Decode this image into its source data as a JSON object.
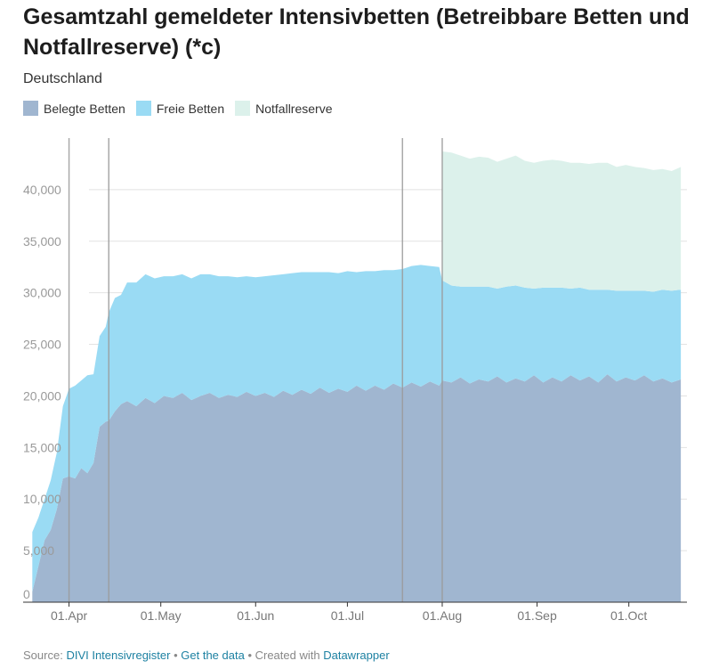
{
  "header": {
    "title": "Gesamtzahl gemeldeter Intensivbetten (Betreibbare Betten und Notfallreserve) (*c)",
    "subtitle": "Deutschland"
  },
  "legend": [
    {
      "label": "Belegte Betten",
      "color": "#a0b6d0"
    },
    {
      "label": "Freie Betten",
      "color": "#9adbf4"
    },
    {
      "label": "Notfallreserve",
      "color": "#dcf1eb"
    }
  ],
  "footer": {
    "source_prefix": "Source:",
    "source_name": "DIVI Intensivregister",
    "sep1": " • ",
    "get_data": "Get the data",
    "sep2": " • ",
    "created_with": "Created with",
    "tool": "Datawrapper"
  },
  "chart_data": {
    "type": "area",
    "stacked": true,
    "title": "Gesamtzahl gemeldeter Intensivbetten (Betreibbare Betten und Notfallreserve) (*c)",
    "subtitle": "Deutschland",
    "xlabel": "",
    "ylabel": "",
    "ylim": [
      0,
      45000
    ],
    "yticks": [
      0,
      5000,
      10000,
      15000,
      20000,
      25000,
      30000,
      35000,
      40000
    ],
    "ytick_labels": [
      "0",
      "5,000",
      "10,000",
      "15,000",
      "20,000",
      "25,000",
      "30,000",
      "35,000",
      "40,000"
    ],
    "xlim": [
      "2020-03-17",
      "2020-10-20"
    ],
    "xticks": [
      "2020-04-01",
      "2020-05-01",
      "2020-06-01",
      "2020-07-01",
      "2020-08-01",
      "2020-09-01",
      "2020-10-01"
    ],
    "xtick_labels": [
      "01.Apr",
      "01.May",
      "01.Jun",
      "01.Jul",
      "01.Aug",
      "01.Sep",
      "01.Oct"
    ],
    "annotation_lines": [
      "2020-04-01",
      "2020-04-14",
      "2020-07-19",
      "2020-08-01"
    ],
    "grid": true,
    "legend_position": "top-left",
    "x": [
      "2020-03-20",
      "2020-03-22",
      "2020-03-24",
      "2020-03-26",
      "2020-03-28",
      "2020-03-30",
      "2020-04-01",
      "2020-04-03",
      "2020-04-05",
      "2020-04-07",
      "2020-04-09",
      "2020-04-11",
      "2020-04-13",
      "2020-04-14",
      "2020-04-16",
      "2020-04-18",
      "2020-04-20",
      "2020-04-23",
      "2020-04-26",
      "2020-04-29",
      "2020-05-02",
      "2020-05-05",
      "2020-05-08",
      "2020-05-11",
      "2020-05-14",
      "2020-05-17",
      "2020-05-20",
      "2020-05-23",
      "2020-05-26",
      "2020-05-29",
      "2020-06-01",
      "2020-06-04",
      "2020-06-07",
      "2020-06-10",
      "2020-06-13",
      "2020-06-16",
      "2020-06-19",
      "2020-06-22",
      "2020-06-25",
      "2020-06-28",
      "2020-07-01",
      "2020-07-04",
      "2020-07-07",
      "2020-07-10",
      "2020-07-13",
      "2020-07-16",
      "2020-07-19",
      "2020-07-22",
      "2020-07-25",
      "2020-07-28",
      "2020-07-31",
      "2020-08-01",
      "2020-08-04",
      "2020-08-07",
      "2020-08-10",
      "2020-08-13",
      "2020-08-16",
      "2020-08-19",
      "2020-08-22",
      "2020-08-25",
      "2020-08-28",
      "2020-08-31",
      "2020-09-03",
      "2020-09-06",
      "2020-09-09",
      "2020-09-12",
      "2020-09-15",
      "2020-09-18",
      "2020-09-21",
      "2020-09-24",
      "2020-09-27",
      "2020-09-30",
      "2020-10-03",
      "2020-10-06",
      "2020-10-09",
      "2020-10-12",
      "2020-10-15",
      "2020-10-18"
    ],
    "series": [
      {
        "name": "Belegte Betten",
        "values": [
          1000,
          3500,
          6000,
          7000,
          9000,
          12000,
          12200,
          12000,
          13000,
          12500,
          13500,
          17000,
          17500,
          17600,
          18500,
          19200,
          19500,
          19000,
          19800,
          19300,
          20000,
          19800,
          20300,
          19600,
          20000,
          20300,
          19800,
          20100,
          19900,
          20400,
          20000,
          20300,
          19900,
          20500,
          20100,
          20600,
          20200,
          20800,
          20300,
          20700,
          20400,
          21000,
          20500,
          21000,
          20600,
          21200,
          20800,
          21300,
          20900,
          21400,
          21000,
          21500,
          21300,
          21800,
          21200,
          21600,
          21400,
          21900,
          21300,
          21700,
          21400,
          22000,
          21300,
          21800,
          21400,
          22000,
          21500,
          21900,
          21300,
          22100,
          21400,
          21800,
          21500,
          22000,
          21400,
          21700,
          21300,
          21600
        ]
      },
      {
        "name": "Freie Betten",
        "values": [
          5800,
          4700,
          4000,
          4800,
          5500,
          7000,
          8500,
          9000,
          8500,
          9500,
          8600,
          8800,
          9200,
          10500,
          11000,
          10600,
          11500,
          12000,
          12000,
          12100,
          11600,
          11800,
          11500,
          11800,
          11800,
          11500,
          11800,
          11500,
          11600,
          11200,
          11500,
          11300,
          11800,
          11300,
          11800,
          11400,
          11800,
          11200,
          11700,
          11200,
          11700,
          11000,
          11600,
          11100,
          11600,
          11000,
          11500,
          11300,
          11800,
          11200,
          11500,
          9700,
          9400,
          8800,
          9400,
          9000,
          9200,
          8500,
          9300,
          9000,
          9100,
          8400,
          9200,
          8700,
          9100,
          8400,
          9000,
          8400,
          9000,
          8200,
          8800,
          8400,
          8700,
          8200,
          8700,
          8600,
          8900,
          8700
        ]
      },
      {
        "name": "Notfallreserve",
        "values": [
          0,
          0,
          0,
          0,
          0,
          0,
          0,
          0,
          0,
          0,
          0,
          0,
          0,
          0,
          0,
          0,
          0,
          0,
          0,
          0,
          0,
          0,
          0,
          0,
          0,
          0,
          0,
          0,
          0,
          0,
          0,
          0,
          0,
          0,
          0,
          0,
          0,
          0,
          0,
          0,
          0,
          0,
          0,
          0,
          0,
          0,
          0,
          0,
          0,
          0,
          0,
          12500,
          12900,
          12700,
          12400,
          12600,
          12500,
          12300,
          12400,
          12600,
          12300,
          12200,
          12300,
          12400,
          12300,
          12200,
          12100,
          12200,
          12300,
          12300,
          12000,
          12200,
          12000,
          11900,
          11800,
          11700,
          11600,
          11900
        ]
      }
    ]
  }
}
